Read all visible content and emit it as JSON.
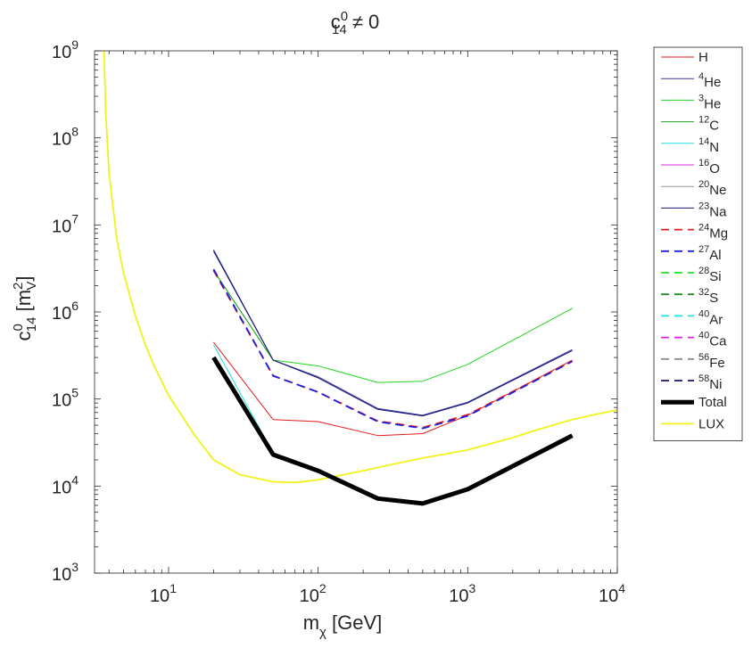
{
  "chart_data": {
    "type": "line",
    "title": {
      "base": "c",
      "sup": "0",
      "sub": "14",
      "rest": " ≠ 0"
    },
    "xlabel": {
      "base": "m",
      "sub": "χ",
      "rest": " [GeV]"
    },
    "ylabel": {
      "base": "c",
      "sup": "0",
      "sub": "14",
      "unit_open": " [m",
      "unit_sup": "2",
      "unit_sub": "V",
      "unit_close": "]"
    },
    "xscale": "log",
    "yscale": "log",
    "xlim": [
      3.2,
      10000
    ],
    "ylim": [
      1000,
      1000000000
    ],
    "x_ticks": [
      {
        "value": 10,
        "base": "10",
        "exp": "1"
      },
      {
        "value": 100,
        "base": "10",
        "exp": "2"
      },
      {
        "value": 1000,
        "base": "10",
        "exp": "3"
      },
      {
        "value": 10000,
        "base": "10",
        "exp": "4"
      }
    ],
    "y_ticks": [
      {
        "value": 1000,
        "base": "10",
        "exp": "3"
      },
      {
        "value": 10000,
        "base": "10",
        "exp": "4"
      },
      {
        "value": 100000,
        "base": "10",
        "exp": "5"
      },
      {
        "value": 1000000,
        "base": "10",
        "exp": "6"
      },
      {
        "value": 10000000,
        "base": "10",
        "exp": "7"
      },
      {
        "value": 100000000,
        "base": "10",
        "exp": "8"
      },
      {
        "value": 1000000000,
        "base": "10",
        "exp": "9"
      }
    ],
    "legend_position": "outside-right",
    "series": [
      {
        "name": "H",
        "sup": "",
        "label": "H",
        "color": "#e41a1c",
        "style": "solid",
        "width": 1,
        "x": [
          20,
          50,
          100,
          250,
          500,
          1000,
          5000
        ],
        "y": [
          450000,
          58000,
          55000,
          38000,
          40000,
          65000,
          280000
        ]
      },
      {
        "name": "4He",
        "sup": "4",
        "label": "He",
        "color": "#3a3aa8",
        "style": "solid",
        "width": 1,
        "x": [
          20,
          50,
          100,
          250,
          500,
          1000,
          5000
        ],
        "y": [
          5200000,
          280000,
          180000,
          78000,
          65000,
          92000,
          370000
        ]
      },
      {
        "name": "3He",
        "sup": "3",
        "label": "He",
        "color": "#22d622",
        "style": "solid",
        "width": 1,
        "x": [
          20,
          50,
          100,
          250,
          500,
          1000,
          5000
        ],
        "y": [
          3000000,
          280000,
          240000,
          155000,
          160000,
          250000,
          1100000
        ]
      },
      {
        "name": "12C",
        "sup": "12",
        "label": "C",
        "color": "#22a322",
        "style": "solid",
        "width": 1,
        "x": [
          20,
          50
        ],
        "y": [
          3000000,
          280000
        ]
      },
      {
        "name": "14N",
        "sup": "14",
        "label": "N",
        "color": "#22e0e0",
        "style": "solid",
        "width": 1,
        "x": [
          20,
          50,
          100
        ],
        "y": [
          420000,
          24000,
          15500
        ]
      },
      {
        "name": "16O",
        "sup": "16",
        "label": "O",
        "color": "#e022e0",
        "style": "solid",
        "width": 1,
        "x": [
          20
        ],
        "y": [
          400000
        ]
      },
      {
        "name": "20Ne",
        "sup": "20",
        "label": "Ne",
        "color": "#999999",
        "style": "solid",
        "width": 1,
        "x": [
          20
        ],
        "y": [
          400000
        ]
      },
      {
        "name": "23Na",
        "sup": "23",
        "label": "Na",
        "color": "#14146e",
        "style": "solid",
        "width": 1,
        "x": [
          20,
          50,
          100,
          250,
          500,
          1000,
          5000
        ],
        "y": [
          5000000,
          280000,
          175000,
          76000,
          64000,
          90000,
          360000
        ]
      },
      {
        "name": "24Mg",
        "sup": "24",
        "label": "Mg",
        "color": "#e41a1c",
        "style": "dashed",
        "width": 1.8,
        "x": [
          20,
          50,
          100,
          250,
          500,
          1000,
          5000
        ],
        "y": [
          3000000,
          185000,
          120000,
          56000,
          47000,
          66000,
          275000
        ]
      },
      {
        "name": "27Al",
        "sup": "27",
        "label": "Al",
        "color": "#1f1fdd",
        "style": "dashed",
        "width": 1.8,
        "x": [
          20,
          50,
          100,
          250,
          500,
          1000,
          5000
        ],
        "y": [
          3100000,
          185000,
          120000,
          55000,
          46000,
          64000,
          270000
        ]
      },
      {
        "name": "28Si",
        "sup": "28",
        "label": "Si",
        "color": "#22e022",
        "style": "dashed",
        "width": 1.8,
        "x": [],
        "y": []
      },
      {
        "name": "32S",
        "sup": "32",
        "label": "S",
        "color": "#1f8f1f",
        "style": "dashed",
        "width": 1.8,
        "x": [],
        "y": []
      },
      {
        "name": "40Ar",
        "sup": "40",
        "label": "Ar",
        "color": "#22e0e0",
        "style": "dashed",
        "width": 1.8,
        "x": [],
        "y": []
      },
      {
        "name": "40Ca",
        "sup": "40",
        "label": "Ca",
        "color": "#e022e0",
        "style": "dashed",
        "width": 1.8,
        "x": [],
        "y": []
      },
      {
        "name": "56Fe",
        "sup": "56",
        "label": "Fe",
        "color": "#8c8c8c",
        "style": "dashed",
        "width": 1.8,
        "x": [],
        "y": []
      },
      {
        "name": "58Ni",
        "sup": "58",
        "label": "Ni",
        "color": "#14146e",
        "style": "dashed",
        "width": 1.8,
        "x": [],
        "y": []
      },
      {
        "name": "Total",
        "sup": "",
        "label": "Total",
        "color": "#000000",
        "style": "solid",
        "width": 5,
        "x": [
          20,
          50,
          100,
          250,
          500,
          1000,
          5000
        ],
        "y": [
          300000,
          23000,
          15000,
          7200,
          6300,
          9200,
          38000
        ]
      },
      {
        "name": "LUX",
        "sup": "",
        "label": "LUX",
        "color": "#f2f21a",
        "style": "solid",
        "width": 1.8,
        "x": [
          3.7,
          3.8,
          4,
          4.5,
          5,
          6,
          7,
          8,
          10,
          15,
          20,
          30,
          50,
          70,
          100,
          200,
          300,
          500,
          1000,
          2000,
          3000,
          5000,
          7000,
          10000
        ],
        "y": [
          1000000000,
          200000000,
          40000000,
          7000000,
          2800000,
          900000,
          420000,
          240000,
          110000,
          38000,
          20000,
          13500,
          11200,
          11000,
          11800,
          15000,
          17500,
          21000,
          26000,
          36000,
          45000,
          58000,
          66000,
          75000
        ]
      }
    ]
  }
}
